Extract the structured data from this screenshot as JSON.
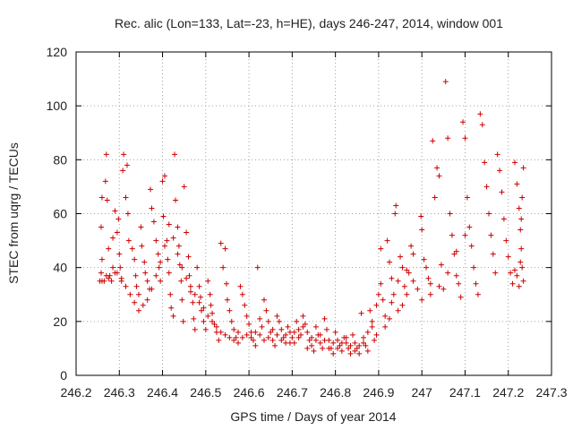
{
  "chart_data": {
    "type": "scatter",
    "title": "Rec. alic (Lon=133, Lat=-23, h=HE), days 246-247, 2014, window 001",
    "xlabel": "GPS time / Days of year 2014",
    "ylabel": "STEC from uqrg / TECUs",
    "xlim": [
      246.2,
      247.3
    ],
    "ylim": [
      0,
      120
    ],
    "x_ticks": [
      "246.2",
      "246.3",
      "246.4",
      "246.5",
      "246.6",
      "246.7",
      "246.8",
      "246.9",
      "247",
      "247.1",
      "247.2",
      "247.3"
    ],
    "y_ticks": [
      "0",
      "20",
      "40",
      "60",
      "80",
      "100",
      "120"
    ],
    "grid": true,
    "marker": "+",
    "color": "#cc0000",
    "points": [
      [
        246.255,
        35
      ],
      [
        246.258,
        38
      ],
      [
        246.26,
        43
      ],
      [
        246.258,
        55
      ],
      [
        246.26,
        66
      ],
      [
        246.268,
        72
      ],
      [
        246.27,
        82
      ],
      [
        246.272,
        65
      ],
      [
        246.275,
        47
      ],
      [
        246.278,
        37
      ],
      [
        246.282,
        35
      ],
      [
        246.285,
        51
      ],
      [
        246.29,
        61
      ],
      [
        246.295,
        53
      ],
      [
        246.298,
        58
      ],
      [
        246.3,
        45
      ],
      [
        246.302,
        40
      ],
      [
        246.305,
        35
      ],
      [
        246.308,
        76
      ],
      [
        246.31,
        82
      ],
      [
        246.318,
        78
      ],
      [
        246.315,
        66
      ],
      [
        246.32,
        60
      ],
      [
        246.322,
        50
      ],
      [
        246.33,
        47
      ],
      [
        246.335,
        43
      ],
      [
        246.338,
        37
      ],
      [
        246.34,
        33
      ],
      [
        246.345,
        30
      ],
      [
        246.35,
        55
      ],
      [
        246.352,
        48
      ],
      [
        246.358,
        42
      ],
      [
        246.36,
        38
      ],
      [
        246.365,
        35
      ],
      [
        246.37,
        32
      ],
      [
        246.372,
        69
      ],
      [
        246.375,
        62
      ],
      [
        246.38,
        57
      ],
      [
        246.385,
        50
      ],
      [
        246.39,
        45
      ],
      [
        246.392,
        40
      ],
      [
        246.395,
        35
      ],
      [
        246.4,
        72
      ],
      [
        246.402,
        59
      ],
      [
        246.405,
        74
      ],
      [
        246.41,
        50
      ],
      [
        246.412,
        43
      ],
      [
        246.415,
        38
      ],
      [
        246.418,
        30
      ],
      [
        246.42,
        25
      ],
      [
        246.425,
        22
      ],
      [
        246.428,
        82
      ],
      [
        246.43,
        65
      ],
      [
        246.435,
        55
      ],
      [
        246.438,
        48
      ],
      [
        246.44,
        41
      ],
      [
        246.443,
        35
      ],
      [
        246.445,
        28
      ],
      [
        246.448,
        20
      ],
      [
        246.45,
        70
      ],
      [
        246.455,
        53
      ],
      [
        246.46,
        44
      ],
      [
        246.462,
        37
      ],
      [
        246.465,
        31
      ],
      [
        246.47,
        27
      ],
      [
        246.472,
        21
      ],
      [
        246.475,
        17
      ],
      [
        246.48,
        40
      ],
      [
        246.485,
        33
      ],
      [
        246.488,
        29
      ],
      [
        246.49,
        24
      ],
      [
        246.495,
        20
      ],
      [
        246.5,
        17
      ],
      [
        246.505,
        35
      ],
      [
        246.51,
        30
      ],
      [
        246.512,
        26
      ],
      [
        246.515,
        23
      ],
      [
        246.52,
        19
      ],
      [
        246.525,
        16
      ],
      [
        246.53,
        13
      ],
      [
        246.535,
        49
      ],
      [
        246.54,
        40
      ],
      [
        246.545,
        47
      ],
      [
        246.548,
        34
      ],
      [
        246.55,
        28
      ],
      [
        246.555,
        24
      ],
      [
        246.56,
        20
      ],
      [
        246.565,
        17
      ],
      [
        246.57,
        14
      ],
      [
        246.575,
        12
      ],
      [
        246.58,
        33
      ],
      [
        246.585,
        30
      ],
      [
        246.59,
        26
      ],
      [
        246.595,
        22
      ],
      [
        246.6,
        19
      ],
      [
        246.605,
        16
      ],
      [
        246.61,
        13
      ],
      [
        246.615,
        11
      ],
      [
        246.62,
        40
      ],
      [
        246.625,
        21
      ],
      [
        246.63,
        18
      ],
      [
        246.635,
        28
      ],
      [
        246.64,
        24
      ],
      [
        246.645,
        20
      ],
      [
        246.65,
        16
      ],
      [
        246.655,
        13
      ],
      [
        246.66,
        11
      ],
      [
        246.665,
        22
      ],
      [
        246.67,
        20
      ],
      [
        246.675,
        17
      ],
      [
        246.68,
        14
      ],
      [
        246.685,
        12
      ],
      [
        246.69,
        18
      ],
      [
        246.695,
        16
      ],
      [
        246.7,
        14
      ],
      [
        246.705,
        12
      ],
      [
        246.71,
        20
      ],
      [
        246.715,
        17
      ],
      [
        246.72,
        15
      ],
      [
        246.725,
        22
      ],
      [
        246.73,
        19
      ],
      [
        246.735,
        16
      ],
      [
        246.74,
        13
      ],
      [
        246.745,
        11
      ],
      [
        246.75,
        9
      ],
      [
        246.755,
        18
      ],
      [
        246.76,
        15
      ],
      [
        246.765,
        12
      ],
      [
        246.77,
        10
      ],
      [
        246.775,
        21
      ],
      [
        246.78,
        17
      ],
      [
        246.785,
        13
      ],
      [
        246.79,
        10
      ],
      [
        246.795,
        8
      ],
      [
        246.8,
        16
      ],
      [
        246.805,
        13
      ],
      [
        246.81,
        11
      ],
      [
        246.815,
        9
      ],
      [
        246.82,
        14
      ],
      [
        246.825,
        12
      ],
      [
        246.83,
        10
      ],
      [
        246.835,
        8
      ],
      [
        246.84,
        15
      ],
      [
        246.845,
        12
      ],
      [
        246.85,
        10
      ],
      [
        246.855,
        8
      ],
      [
        246.86,
        23
      ],
      [
        246.865,
        14
      ],
      [
        246.87,
        11
      ],
      [
        246.875,
        9
      ],
      [
        246.88,
        24
      ],
      [
        246.885,
        18
      ],
      [
        246.89,
        13
      ],
      [
        246.895,
        15
      ],
      [
        246.9,
        30
      ],
      [
        246.905,
        47
      ],
      [
        246.91,
        28
      ],
      [
        246.915,
        22
      ],
      [
        246.92,
        50
      ],
      [
        246.925,
        42
      ],
      [
        246.93,
        36
      ],
      [
        246.935,
        30
      ],
      [
        246.94,
        63
      ],
      [
        246.945,
        35
      ],
      [
        246.95,
        44
      ],
      [
        246.955,
        40
      ],
      [
        246.96,
        33
      ],
      [
        246.965,
        30
      ],
      [
        246.97,
        38
      ],
      [
        246.975,
        48
      ],
      [
        246.98,
        35
      ],
      [
        246.99,
        32
      ],
      [
        246.998,
        59
      ],
      [
        247.0,
        54
      ],
      [
        247.005,
        43
      ],
      [
        247.01,
        40
      ],
      [
        247.015,
        36
      ],
      [
        247.02,
        34
      ],
      [
        247.025,
        87
      ],
      [
        247.03,
        66
      ],
      [
        247.035,
        77
      ],
      [
        247.04,
        74
      ],
      [
        247.045,
        41
      ],
      [
        247.05,
        32
      ],
      [
        247.055,
        109
      ],
      [
        247.06,
        88
      ],
      [
        247.065,
        60
      ],
      [
        247.07,
        52
      ],
      [
        247.075,
        45
      ],
      [
        247.08,
        37
      ],
      [
        247.085,
        34
      ],
      [
        247.09,
        29
      ],
      [
        247.095,
        94
      ],
      [
        247.1,
        88
      ],
      [
        247.105,
        66
      ],
      [
        247.11,
        55
      ],
      [
        247.115,
        48
      ],
      [
        247.12,
        40
      ],
      [
        247.125,
        34
      ],
      [
        247.13,
        30
      ],
      [
        247.135,
        97
      ],
      [
        247.14,
        93
      ],
      [
        247.145,
        79
      ],
      [
        247.15,
        70
      ],
      [
        247.155,
        60
      ],
      [
        247.16,
        52
      ],
      [
        247.165,
        45
      ],
      [
        247.17,
        38
      ],
      [
        247.175,
        82
      ],
      [
        247.18,
        76
      ],
      [
        247.185,
        68
      ],
      [
        247.19,
        58
      ],
      [
        247.195,
        50
      ],
      [
        247.2,
        44
      ],
      [
        247.205,
        38
      ],
      [
        247.21,
        34
      ],
      [
        247.215,
        79
      ],
      [
        247.22,
        71
      ],
      [
        247.225,
        62
      ],
      [
        247.228,
        54
      ],
      [
        247.23,
        47
      ],
      [
        247.232,
        40
      ],
      [
        247.235,
        35
      ],
      [
        247.235,
        77
      ],
      [
        247.232,
        66
      ],
      [
        247.23,
        58
      ],
      [
        247.228,
        42
      ],
      [
        247.225,
        33
      ],
      [
        247.22,
        37
      ],
      [
        247.215,
        39
      ],
      [
        247.1,
        52
      ],
      [
        247.08,
        46
      ],
      [
        247.06,
        38
      ],
      [
        247.04,
        33
      ],
      [
        247.02,
        30
      ],
      [
        247.0,
        28
      ],
      [
        246.98,
        45
      ],
      [
        246.965,
        39
      ],
      [
        246.955,
        26
      ],
      [
        246.945,
        24
      ],
      [
        246.938,
        60
      ],
      [
        246.93,
        27
      ],
      [
        246.925,
        21
      ],
      [
        246.915,
        18
      ],
      [
        246.905,
        34
      ],
      [
        246.895,
        26
      ],
      [
        246.885,
        20
      ],
      [
        246.875,
        16
      ],
      [
        246.865,
        12
      ],
      [
        246.855,
        11
      ],
      [
        246.845,
        9
      ],
      [
        246.835,
        11
      ],
      [
        246.825,
        14
      ],
      [
        246.815,
        12
      ],
      [
        246.805,
        10
      ],
      [
        246.795,
        12
      ],
      [
        246.785,
        10
      ],
      [
        246.775,
        13
      ],
      [
        246.765,
        15
      ],
      [
        246.755,
        13
      ],
      [
        246.745,
        14
      ],
      [
        246.735,
        10
      ],
      [
        246.725,
        18
      ],
      [
        246.715,
        14
      ],
      [
        246.705,
        16
      ],
      [
        246.695,
        12
      ],
      [
        246.685,
        15
      ],
      [
        246.675,
        13
      ],
      [
        246.665,
        15
      ],
      [
        246.655,
        17
      ],
      [
        246.645,
        14
      ],
      [
        246.635,
        13
      ],
      [
        246.625,
        15
      ],
      [
        246.615,
        16
      ],
      [
        246.605,
        14
      ],
      [
        246.595,
        15
      ],
      [
        246.585,
        14
      ],
      [
        246.575,
        16
      ],
      [
        246.565,
        13
      ],
      [
        246.555,
        14
      ],
      [
        246.545,
        15
      ],
      [
        246.535,
        16
      ],
      [
        246.525,
        18
      ],
      [
        246.515,
        20
      ],
      [
        246.505,
        22
      ],
      [
        246.495,
        25
      ],
      [
        246.485,
        27
      ],
      [
        246.475,
        30
      ],
      [
        246.465,
        33
      ],
      [
        246.455,
        36
      ],
      [
        246.445,
        40
      ],
      [
        246.435,
        45
      ],
      [
        246.425,
        51
      ],
      [
        246.415,
        56
      ],
      [
        246.405,
        48
      ],
      [
        246.395,
        42
      ],
      [
        246.385,
        37
      ],
      [
        246.375,
        32
      ],
      [
        246.365,
        28
      ],
      [
        246.355,
        26
      ],
      [
        246.345,
        24
      ],
      [
        246.335,
        27
      ],
      [
        246.325,
        30
      ],
      [
        246.315,
        33
      ],
      [
        246.305,
        36
      ],
      [
        246.295,
        38
      ],
      [
        246.285,
        40
      ],
      [
        246.275,
        36
      ],
      [
        246.265,
        35
      ],
      [
        246.26,
        35
      ],
      [
        246.27,
        37
      ],
      [
        246.29,
        38
      ]
    ]
  }
}
